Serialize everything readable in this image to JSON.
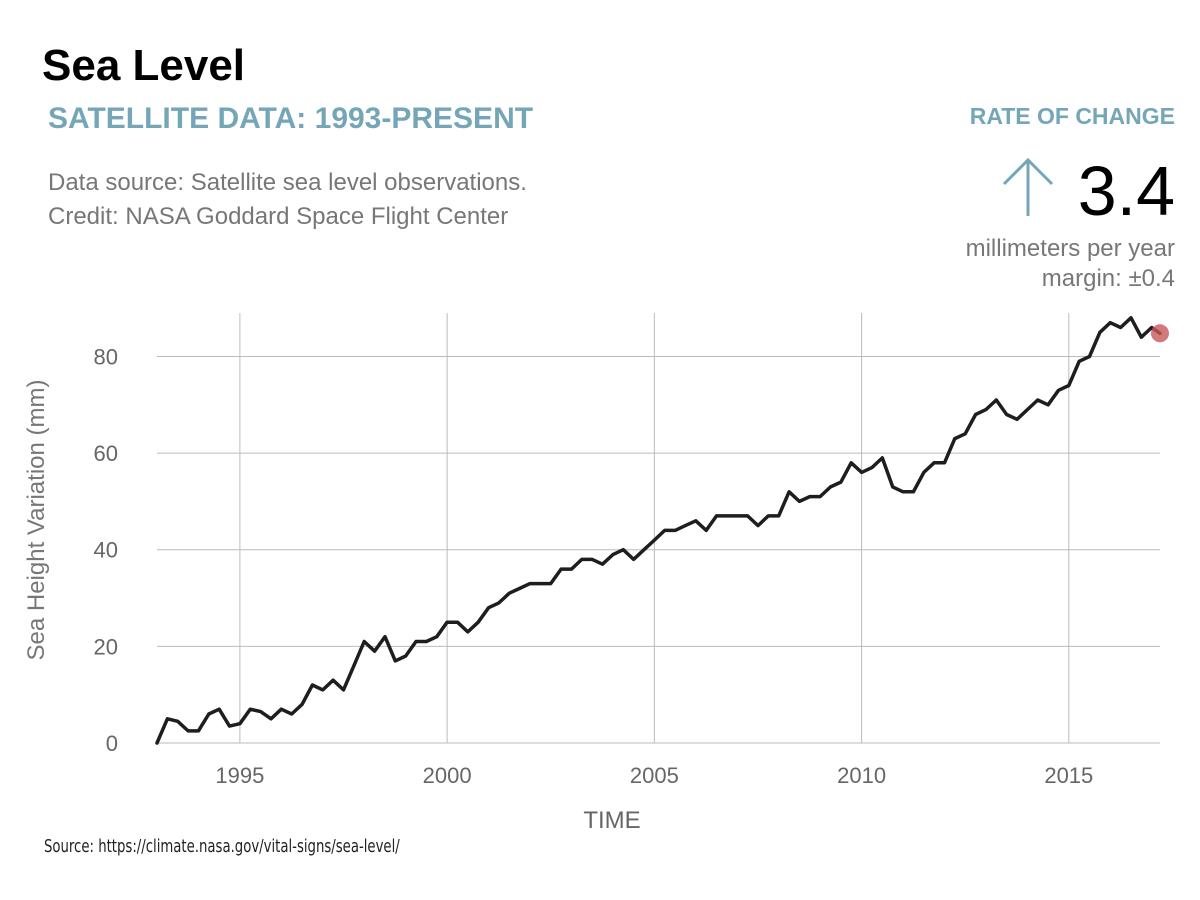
{
  "chart_data": {
    "type": "line",
    "title": "Sea Level",
    "subtitle": "SATELLITE DATA: 1993-PRESENT",
    "source_lines": [
      "Data source: Satellite sea level observations.",
      "Credit: NASA Goddard Space Flight Center"
    ],
    "rate_heading": "RATE OF CHANGE",
    "rate_value": 3.4,
    "rate_unit": "millimeters per year",
    "rate_margin": "margin: ±0.4",
    "x_label": "TIME",
    "y_label": "Sea Height Variation (mm)",
    "footnote": "Source: https://climate.nasa.gov/vital-signs/sea-level/",
    "color": "#1e1e1e",
    "end_marker_color": "#c9575a",
    "grid": true,
    "xlim": [
      1993,
      2017.2
    ],
    "xticks": [
      1995,
      2000,
      2005,
      2010,
      2015
    ],
    "ylim": [
      0,
      89
    ],
    "yticks": [
      0,
      20,
      40,
      60,
      80
    ],
    "x": [
      1993.0,
      1993.25,
      1993.5,
      1993.75,
      1994.0,
      1994.25,
      1994.5,
      1994.75,
      1995.0,
      1995.25,
      1995.5,
      1995.75,
      1996.0,
      1996.25,
      1996.5,
      1996.75,
      1997.0,
      1997.25,
      1997.5,
      1997.75,
      1998.0,
      1998.25,
      1998.5,
      1998.75,
      1999.0,
      1999.25,
      1999.5,
      1999.75,
      2000.0,
      2000.25,
      2000.5,
      2000.75,
      2001.0,
      2001.25,
      2001.5,
      2001.75,
      2002.0,
      2002.25,
      2002.5,
      2002.75,
      2003.0,
      2003.25,
      2003.5,
      2003.75,
      2004.0,
      2004.25,
      2004.5,
      2004.75,
      2005.0,
      2005.25,
      2005.5,
      2005.75,
      2006.0,
      2006.25,
      2006.5,
      2006.75,
      2007.0,
      2007.25,
      2007.5,
      2007.75,
      2008.0,
      2008.25,
      2008.5,
      2008.75,
      2009.0,
      2009.25,
      2009.5,
      2009.75,
      2010.0,
      2010.25,
      2010.5,
      2010.75,
      2011.0,
      2011.25,
      2011.5,
      2011.75,
      2012.0,
      2012.25,
      2012.5,
      2012.75,
      2013.0,
      2013.25,
      2013.5,
      2013.75,
      2014.0,
      2014.25,
      2014.5,
      2014.75,
      2015.0,
      2015.25,
      2015.5,
      2015.75,
      2016.0,
      2016.25,
      2016.5,
      2016.75,
      2017.0,
      2017.2
    ],
    "values": [
      0,
      5,
      4.5,
      2.5,
      2.5,
      6,
      7,
      3.5,
      4,
      7,
      6.5,
      5,
      7,
      6,
      8,
      12,
      11,
      13,
      11,
      16,
      21,
      19,
      22,
      17,
      18,
      21,
      21,
      22,
      25,
      25,
      23,
      25,
      28,
      29,
      31,
      32,
      33,
      33,
      33,
      36,
      36,
      38,
      38,
      37,
      39,
      40,
      38,
      40,
      42,
      44,
      44,
      45,
      46,
      44,
      47,
      47,
      47,
      47,
      45,
      47,
      47,
      52,
      50,
      51,
      51,
      53,
      54,
      58,
      56,
      57,
      59,
      53,
      52,
      52,
      56,
      58,
      58,
      63,
      64,
      68,
      69,
      71,
      68,
      67,
      69,
      71,
      70,
      73,
      74,
      79,
      80,
      85,
      87,
      86,
      88,
      84,
      86,
      84.8
    ]
  }
}
